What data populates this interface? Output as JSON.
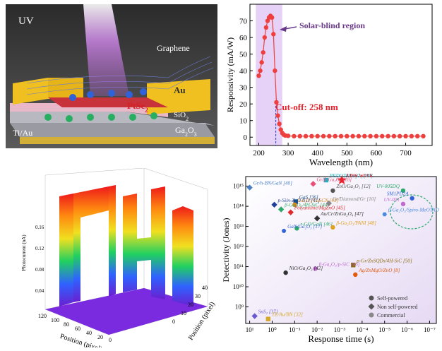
{
  "device": {
    "uv_label": "UV",
    "graphene_label": "Graphene",
    "au_label": "Au",
    "ptse2_label": "PtSe",
    "ptse2_sub": "2",
    "sio2_label": "SiO",
    "sio2_sub": "2",
    "tiau_label": "Ti/Au",
    "ga2o3_label": "Ga",
    "ga2o3_mid": "O",
    "ga2o3_sub1": "2",
    "ga2o3_sub2": "3"
  },
  "colors": {
    "uv_beam": "#c56be8",
    "gold": "#f0c020",
    "ptse2": "#c8323a",
    "sio2": "#e8b8c8",
    "ga2o3": "#b8b8c0",
    "electron": "#27ae60",
    "hole": "#2f62d8",
    "curve": "#ee3f3f",
    "shade": "#e5d2f6",
    "star": "#e8202a"
  },
  "responsivity_chart": {
    "chart_data": {
      "type": "line",
      "title": "",
      "xlabel": "Wavelength (nm)",
      "ylabel": "Responsivity (mA/W)",
      "xlim": [
        170,
        790
      ],
      "ylim": [
        -5,
        80
      ],
      "x_ticks": [
        200,
        300,
        400,
        500,
        600,
        700
      ],
      "y_ticks": [
        0,
        10,
        20,
        30,
        40,
        50,
        60,
        70
      ],
      "x": [
        200,
        205,
        210,
        215,
        220,
        225,
        230,
        235,
        240,
        245,
        250,
        255,
        260,
        265,
        270,
        275,
        280,
        285,
        290,
        300,
        320,
        340,
        360,
        380,
        400,
        420,
        440,
        460,
        480,
        500,
        520,
        540,
        560,
        580,
        600,
        620,
        640,
        660,
        680,
        700,
        720,
        740,
        760
      ],
      "y": [
        37,
        40,
        45,
        51,
        60,
        66,
        70,
        72,
        73,
        72,
        62,
        40,
        21,
        13,
        8,
        4.5,
        2.5,
        1.5,
        1,
        0.8,
        0.6,
        0.6,
        0.6,
        0.6,
        0.6,
        0.6,
        0.6,
        0.6,
        0.6,
        0.6,
        0.6,
        0.6,
        0.6,
        0.6,
        0.6,
        0.6,
        0.6,
        0.6,
        0.6,
        0.6,
        0.6,
        0.6,
        0.6
      ],
      "shaded_region": [
        190,
        280
      ],
      "cutoff_nm": 258,
      "annotations": [
        "Solar-blind region",
        "Cut-off: 258 nm"
      ]
    }
  },
  "surface_plot": {
    "z_label": "Photocurrent (nA)",
    "z_ticks": [
      "0.04",
      "0.08",
      "0.12",
      "0.16"
    ],
    "x_label": "Position (pixel)",
    "x_ticks": [
      "0",
      "20",
      "40",
      "60",
      "80",
      "100",
      "120"
    ],
    "y_label": "Position (pixel)",
    "y_ticks": [
      "0",
      "10",
      "20",
      "30",
      "40"
    ]
  },
  "detectivity_chart": {
    "chart_data": {
      "type": "scatter",
      "xlabel": "Response time (s)",
      "ylabel": "Detectivity (Jones)",
      "x_scale": "log-reversed",
      "xlim": [
        15,
        5e-08
      ],
      "ylim": [
        150000000.0,
        3000000000000000.0
      ],
      "x_tick_labels": [
        "10¹",
        "10⁰",
        "10⁻¹",
        "10⁻²",
        "10⁻³",
        "10⁻⁴",
        "10⁻⁵",
        "10⁻⁶",
        "10⁻⁷"
      ],
      "y_tick_labels": [
        "10⁹",
        "10¹⁰",
        "10¹¹",
        "10¹²",
        "10¹³",
        "10¹⁴",
        "10¹⁵"
      ],
      "points": [
        {
          "label": "This work",
          "x": 0.0008,
          "y": 2000000000000000.0,
          "shape": "star",
          "color": "#e8202a"
        },
        {
          "label": "PEDOTs/Ga₂O₃ [49]",
          "x": 0.004,
          "y": 2000000000000000.0,
          "shape": "square",
          "color": "#1fb3c9"
        },
        {
          "label": "Gr/β-Ga₂O₃ [18]",
          "x": 0.015,
          "y": 1300000000000000.0,
          "shape": "diamond",
          "color": "#e8507a"
        },
        {
          "label": "ZnO/Ga₂O₃ [12]",
          "x": 0.002,
          "y": 600000000000000.0,
          "shape": "circle",
          "color": "#555555"
        },
        {
          "label": "Gr/h-BN/GaN [40]",
          "x": 10,
          "y": 850000000000000.0,
          "shape": "diamond",
          "color": "#4a80c8"
        },
        {
          "label": "p-Si/n-ZnO NTs [41]",
          "x": 0.8,
          "y": 120000000000000.0,
          "shape": "diamond",
          "color": "#1f3f9a"
        },
        {
          "label": "GaS [36]",
          "x": 0.09,
          "y": 170000000000000.0,
          "shape": "square",
          "color": "#1a4f8a"
        },
        {
          "label": "Ga₂O₃/CuSCN [43]",
          "x": 0.1,
          "y": 120000000000000.0,
          "shape": "circle",
          "color": "#d98a1a"
        },
        {
          "label": "β-Ga₂O₃/4H-SiC [44]",
          "x": 0.4,
          "y": 70000000000000.0,
          "shape": "diamond",
          "color": "#2ca86a"
        },
        {
          "label": "Polyaniline/MgZnO [45]",
          "x": 0.15,
          "y": 50000000000000.0,
          "shape": "diamond",
          "color": "#e02a2a"
        },
        {
          "label": "Au/Cr/ZnGa₂O₄ [47]",
          "x": 0.01,
          "y": 25000000000000.0,
          "shape": "diamond",
          "color": "#333333"
        },
        {
          "label": "Gr/Diamond/Gr [10]",
          "x": 0.003,
          "y": 140000000000000.0,
          "shape": "diamond",
          "color": "#888888"
        },
        {
          "label": "β-Ga₂O₃/Spiro-MeOTAD [51]",
          "x": 1e-05,
          "y": 40000000000000.0,
          "shape": "hexagon",
          "color": "#4a8ae0"
        },
        {
          "label": "r-GO/GaN [46]",
          "x": 0.08,
          "y": 8000000000000.0,
          "shape": "circle",
          "color": "#2ca86a"
        },
        {
          "label": "β-Ga₂O₃/PANI [48]",
          "x": 0.002,
          "y": 9000000000000.0,
          "shape": "circle",
          "color": "#e0a020"
        },
        {
          "label": "GaN/Ga₂O₃ [17]",
          "x": 0.3,
          "y": 6000000000000.0,
          "shape": "hexagon",
          "color": "#2f62d8"
        },
        {
          "label": "p-Gr/ZnSQDs/4H-SiC [50]",
          "x": 0.00025,
          "y": 120000000000.0,
          "shape": "square",
          "color": "#8a6a10"
        },
        {
          "label": "β-Ga₂O₃/p-SiC [16]",
          "x": 0.012,
          "y": 80000000000.0,
          "shape": "circle",
          "color": "#c06ad0"
        },
        {
          "label": "NiO/Ga₂O₃ [42]",
          "x": 0.25,
          "y": 50000000000.0,
          "shape": "circle",
          "color": "#333333"
        },
        {
          "label": "Ag/ZnMgO/ZnO [8]",
          "x": 0.0002,
          "y": 40000000000.0,
          "shape": "circle",
          "color": "#e05a10"
        },
        {
          "label": "SnS₂ [37]",
          "x": 6,
          "y": 350000000.0,
          "shape": "diamond",
          "color": "#6a5acd"
        },
        {
          "label": "TE/Au/BN [32]",
          "x": 1.5,
          "y": 250000000.0,
          "shape": "square",
          "color": "#d4a82a"
        },
        {
          "label": "UV-005DQ",
          "x": 1.5e-06,
          "y": 600000000000000.0,
          "shape": "circle",
          "color": "#2ca86a"
        },
        {
          "label": "SM1PD2A",
          "x": 6e-07,
          "y": 250000000000000.0,
          "shape": "circle",
          "color": "#2f62d8"
        },
        {
          "label": "UV-001",
          "x": 1.5e-06,
          "y": 130000000000000.0,
          "shape": "circle",
          "color": "#c06ad0"
        }
      ],
      "legend": [
        "Self-powered",
        "Non self-powered",
        "Commercial"
      ]
    }
  }
}
